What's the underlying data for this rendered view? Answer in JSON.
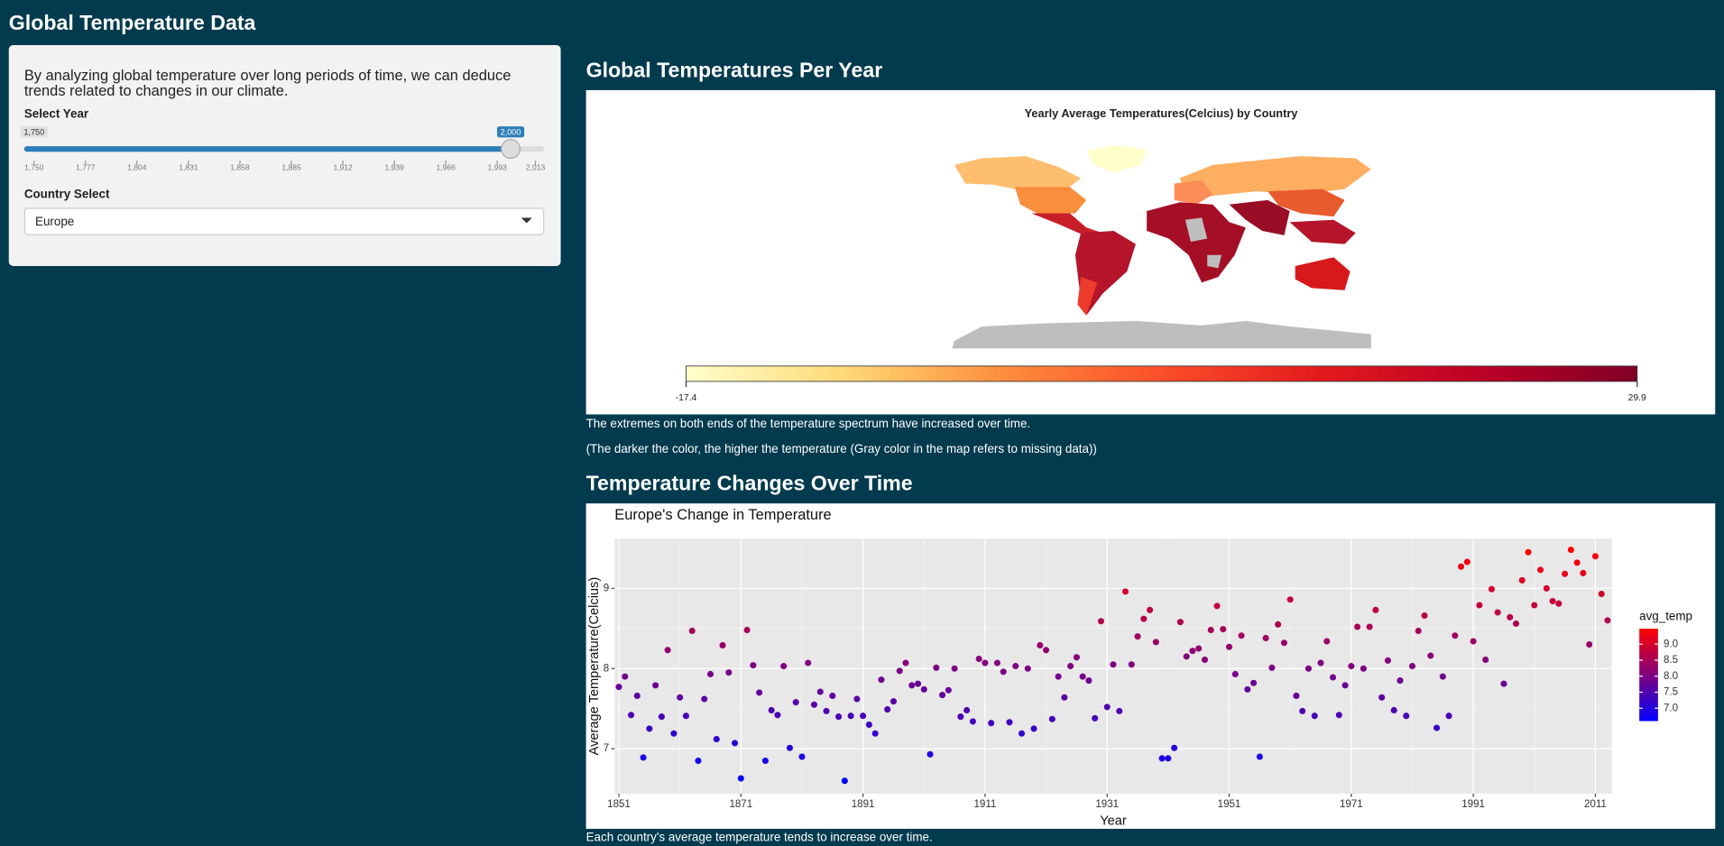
{
  "header": {
    "title": "Global Temperature Data"
  },
  "sidebar": {
    "description": "By analyzing global temperature over long periods of time, we can deduce trends related to changes in our climate.",
    "year_slider": {
      "label": "Select Year",
      "lim": [
        1750,
        2013
      ],
      "min": {
        "value": 1750,
        "label": "1,750"
      },
      "value": {
        "value": 2000,
        "label": "2,000"
      },
      "ticks": [
        {
          "value": 1750,
          "label": "1,750"
        },
        {
          "value": 1777,
          "label": "1,777"
        },
        {
          "value": 1804,
          "label": "1,804"
        },
        {
          "value": 1831,
          "label": "1,831"
        },
        {
          "value": 1858,
          "label": "1,858"
        },
        {
          "value": 1885,
          "label": "1,885"
        },
        {
          "value": 1912,
          "label": "1,912"
        },
        {
          "value": 1939,
          "label": "1,939"
        },
        {
          "value": 1966,
          "label": "1,966"
        },
        {
          "value": 1993,
          "label": "1,993"
        },
        {
          "value": 2013,
          "label": "2,013"
        }
      ]
    },
    "country_select": {
      "label": "Country Select",
      "value": "Europe"
    }
  },
  "sections": [
    {
      "heading": "Global Temperatures Per Year",
      "notes": [
        "The extremes on both ends of the temperature spectrum have increased over time.",
        "(The darker the color, the higher the temperature (Gray color in the map refers to missing data))"
      ]
    },
    {
      "heading": "Temperature Changes Over Time",
      "notes": [
        "Each country's average temperature tends to increase over time."
      ]
    }
  ],
  "chart_data": [
    {
      "type": "choropleth",
      "title": "Yearly Average Temperatures(Celcius) by Country",
      "colorbar": {
        "colors": [
          "#ffffcc",
          "#fed976",
          "#fd8d3c",
          "#fc4e2a",
          "#e31a1c",
          "#bd0026",
          "#800026"
        ],
        "lim": [
          -17.4,
          29.9
        ],
        "ticks": [
          -17.4,
          29.9
        ]
      }
    },
    {
      "type": "scatter",
      "title": "Europe's Change in Temperature",
      "x_label": "Year",
      "y_label": "Average Temperature(Celcius)",
      "x": [
        1851,
        1852,
        1853,
        1854,
        1855,
        1856,
        1857,
        1858,
        1859,
        1860,
        1861,
        1862,
        1863,
        1864,
        1865,
        1866,
        1867,
        1868,
        1869,
        1870,
        1871,
        1872,
        1873,
        1874,
        1875,
        1876,
        1877,
        1878,
        1879,
        1880,
        1881,
        1882,
        1883,
        1884,
        1885,
        1886,
        1887,
        1888,
        1889,
        1890,
        1891,
        1892,
        1893,
        1894,
        1895,
        1896,
        1897,
        1898,
        1899,
        1900,
        1901,
        1902,
        1903,
        1904,
        1905,
        1906,
        1907,
        1908,
        1909,
        1910,
        1911,
        1912,
        1913,
        1914,
        1915,
        1916,
        1917,
        1918,
        1919,
        1920,
        1921,
        1922,
        1923,
        1924,
        1925,
        1926,
        1927,
        1928,
        1929,
        1930,
        1931,
        1932,
        1933,
        1934,
        1935,
        1936,
        1937,
        1938,
        1939,
        1940,
        1941,
        1942,
        1943,
        1944,
        1945,
        1946,
        1947,
        1948,
        1949,
        1950,
        1951,
        1952,
        1953,
        1954,
        1955,
        1956,
        1957,
        1958,
        1959,
        1960,
        1961,
        1962,
        1963,
        1964,
        1965,
        1966,
        1967,
        1968,
        1969,
        1970,
        1971,
        1972,
        1973,
        1974,
        1975,
        1976,
        1977,
        1978,
        1979,
        1980,
        1981,
        1982,
        1983,
        1984,
        1985,
        1986,
        1987,
        1988,
        1989,
        1990,
        1991,
        1992,
        1993,
        1994,
        1995,
        1996,
        1997,
        1998,
        1999,
        2000,
        2001,
        2002,
        2003,
        2004,
        2005,
        2006,
        2007,
        2008,
        2009,
        2010,
        2011,
        2012,
        2013
      ],
      "values": [
        7.77,
        7.9,
        7.42,
        7.66,
        6.89,
        7.25,
        7.79,
        7.4,
        8.23,
        7.19,
        7.64,
        7.41,
        8.47,
        6.85,
        7.62,
        7.93,
        7.12,
        8.29,
        7.95,
        7.07,
        6.63,
        8.48,
        8.04,
        7.7,
        6.85,
        7.48,
        7.42,
        8.03,
        7.01,
        7.58,
        6.9,
        8.07,
        7.55,
        7.71,
        7.47,
        7.66,
        7.4,
        6.6,
        7.41,
        7.62,
        7.41,
        7.3,
        7.19,
        7.86,
        7.49,
        7.59,
        7.97,
        8.07,
        7.79,
        7.81,
        7.74,
        6.93,
        8.01,
        7.67,
        7.73,
        8.0,
        7.4,
        7.48,
        7.34,
        8.12,
        8.07,
        7.32,
        8.07,
        7.96,
        7.33,
        8.03,
        7.19,
        8.0,
        7.25,
        8.29,
        8.23,
        7.37,
        7.9,
        7.64,
        8.03,
        8.14,
        7.9,
        7.85,
        7.38,
        8.59,
        7.52,
        8.05,
        7.47,
        8.96,
        8.05,
        8.4,
        8.62,
        8.73,
        8.33,
        6.88,
        6.88,
        7.01,
        8.58,
        8.15,
        8.22,
        8.25,
        8.11,
        8.48,
        8.78,
        8.49,
        8.27,
        7.93,
        8.41,
        7.74,
        7.82,
        6.9,
        8.38,
        8.01,
        8.55,
        8.32,
        8.86,
        7.66,
        7.47,
        8.0,
        7.41,
        8.07,
        8.34,
        7.89,
        7.42,
        7.79,
        8.03,
        8.52,
        8.0,
        8.52,
        8.73,
        7.64,
        8.1,
        7.48,
        7.85,
        7.41,
        8.03,
        8.47,
        8.66,
        8.16,
        7.26,
        7.9,
        7.41,
        8.41,
        9.27,
        9.33,
        8.34,
        8.79,
        8.11,
        8.99,
        8.7,
        7.81,
        8.64,
        8.56,
        9.1,
        9.45,
        8.79,
        9.23,
        9.0,
        8.84,
        8.81,
        9.18,
        9.48,
        9.32,
        9.19,
        8.3,
        9.4,
        8.93,
        8.6
      ],
      "xlim": [
        1850.3,
        2013.7
      ],
      "ylim": [
        6.44,
        9.62
      ],
      "xticks": [
        1851,
        1871,
        1891,
        1911,
        1931,
        1951,
        1971,
        1991,
        2011
      ],
      "yticks": [
        7,
        8,
        9
      ],
      "grid": true,
      "color_legend": {
        "title": "avg_temp",
        "colors": [
          "#0000ff",
          "#ff0000"
        ],
        "ticks": [
          {
            "value": 7,
            "label": "7.0"
          },
          7.5,
          {
            "value": 8,
            "label": "8.0"
          },
          8.5,
          {
            "value": 9,
            "label": "9.0"
          }
        ]
      }
    }
  ]
}
